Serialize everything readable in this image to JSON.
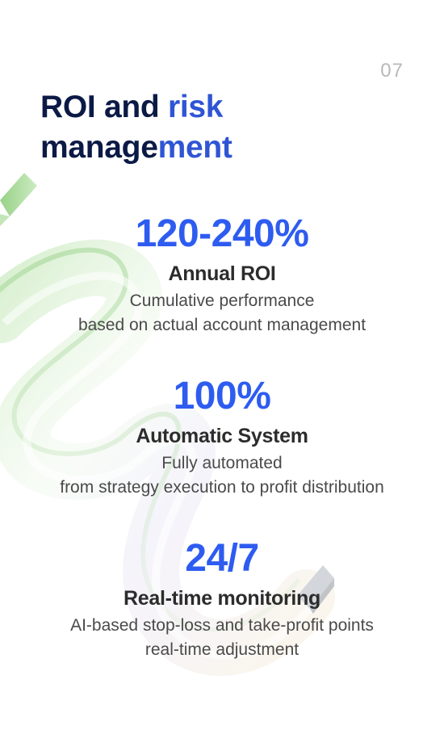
{
  "page_number": "07",
  "title": {
    "line1_part1": "ROI and",
    "line1_part2": "risk",
    "line2_part1": "manage",
    "line2_part2": "ment"
  },
  "stats": [
    {
      "value": "120-240%",
      "label": "Annual ROI",
      "desc_line1": "Cumulative performance",
      "desc_line2": "based on actual account management"
    },
    {
      "value": "100%",
      "label": "Automatic System",
      "desc_line1": "Fully automated",
      "desc_line2": "from strategy execution to profit distribution"
    },
    {
      "value": "24/7",
      "label": "Real-time monitoring",
      "desc_line1": "AI-based stop-loss and take-profit points",
      "desc_line2": "real-time adjustment"
    }
  ],
  "colors": {
    "title_dark": "#0b1a45",
    "title_accent": "#2f55d4",
    "stat_value": "#2e5cf0",
    "label": "#2c2c2c",
    "desc": "#4a4a4a",
    "page_number": "#b9b9b9"
  },
  "decoration": "glass-ribbon-illustration"
}
